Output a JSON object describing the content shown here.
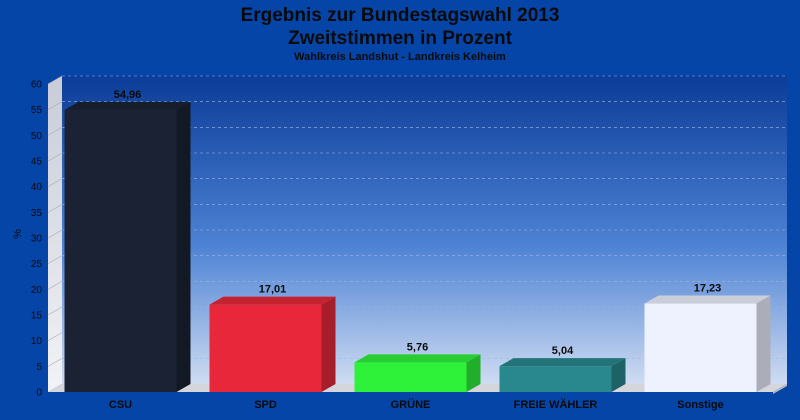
{
  "chart_data": {
    "type": "bar",
    "title_line1": "Ergebnis zur Bundestagswahl 2013",
    "title_line2": "Zweitstimmen in Prozent",
    "subtitle": "Wahlkreis Landshut - Landkreis Kelheim",
    "ylabel": "%",
    "xlabel": "",
    "ylim": [
      0,
      60
    ],
    "yticks": [
      0,
      5,
      10,
      15,
      20,
      25,
      30,
      35,
      40,
      45,
      50,
      55,
      60
    ],
    "grid": true,
    "categories": [
      "CSU",
      "SPD",
      "GRÜNE",
      "FREIE WÄHLER",
      "Sonstige"
    ],
    "values": [
      54.96,
      17.01,
      5.76,
      5.04,
      17.23
    ],
    "value_labels": [
      "54,96",
      "17,01",
      "5,76",
      "5,04",
      "17,23"
    ],
    "colors": [
      "#1a2233",
      "#e8283a",
      "#2ef23a",
      "#28888e",
      "#eef2ff"
    ],
    "background": "#0645a8"
  }
}
